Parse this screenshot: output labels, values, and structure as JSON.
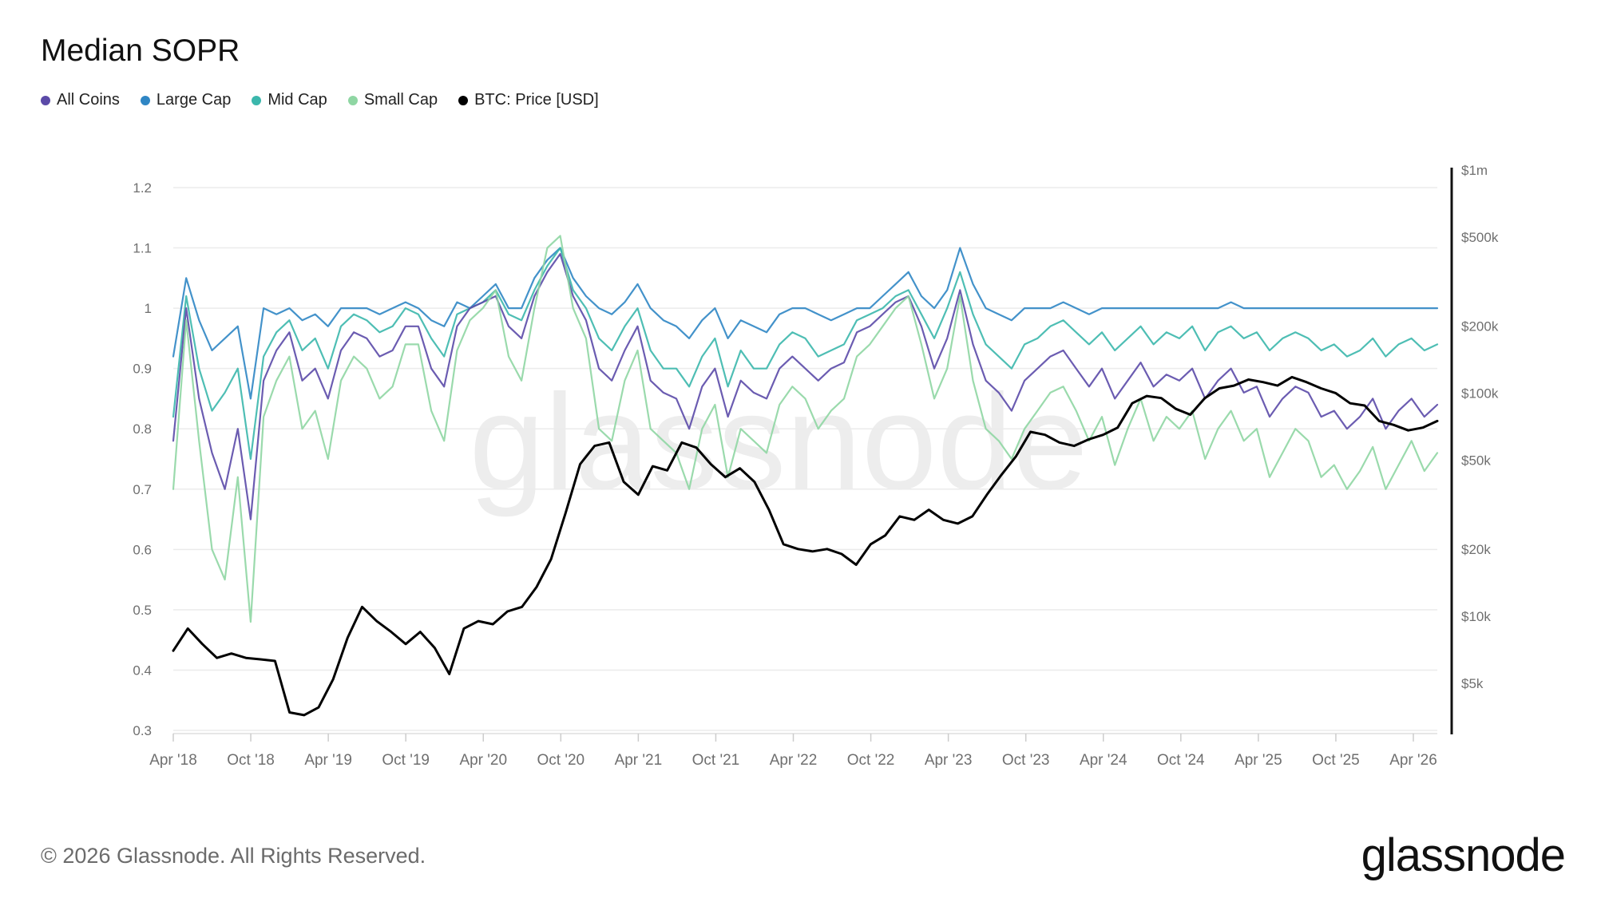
{
  "title": "Median SOPR",
  "legend": [
    {
      "label": "All Coins",
      "color": "#5b4aa8"
    },
    {
      "label": "Large Cap",
      "color": "#2f86c4"
    },
    {
      "label": "Mid Cap",
      "color": "#3bb7ac"
    },
    {
      "label": "Small Cap",
      "color": "#8fd6a3"
    },
    {
      "label": "BTC: Price [USD]",
      "color": "#000000"
    }
  ],
  "watermark": "glassnode",
  "footer": "© 2026 Glassnode. All Rights Reserved.",
  "brand": "glassnode",
  "chart_data": {
    "type": "line",
    "x_ticks": [
      "Apr '18",
      "Oct '18",
      "Apr '19",
      "Oct '19",
      "Apr '20",
      "Oct '20",
      "Apr '21",
      "Oct '21",
      "Apr '22",
      "Oct '22",
      "Apr '23",
      "Oct '23",
      "Apr '24",
      "Oct '24",
      "Apr '25",
      "Oct '25",
      "Apr '26"
    ],
    "xlim": [
      "Mar '18",
      "May '26"
    ],
    "y_left": {
      "ticks": [
        "0.3",
        "0.4",
        "0.5",
        "0.6",
        "0.7",
        "0.8",
        "0.9",
        "1",
        "1.1",
        "1.2"
      ],
      "lim": [
        0.3,
        1.2
      ]
    },
    "y_right": {
      "scale": "log",
      "ticks": [
        "$5k",
        "$10k",
        "$20k",
        "$50k",
        "$100k",
        "$200k",
        "$500k",
        "$1m"
      ],
      "values": [
        5000,
        10000,
        20000,
        50000,
        100000,
        200000,
        500000,
        1000000
      ]
    },
    "grid": true,
    "legend_position": "top-left",
    "series": [
      {
        "name": "Large Cap",
        "axis": "left",
        "color": "#2f86c4",
        "values": [
          0.92,
          1.05,
          0.98,
          0.93,
          0.95,
          0.97,
          0.85,
          1.0,
          0.99,
          1.0,
          0.98,
          0.99,
          0.97,
          1.0,
          1.0,
          1.0,
          0.99,
          1.0,
          1.01,
          1.0,
          0.98,
          0.97,
          1.01,
          1.0,
          1.02,
          1.04,
          1.0,
          1.0,
          1.05,
          1.08,
          1.1,
          1.05,
          1.02,
          1.0,
          0.99,
          1.01,
          1.04,
          1.0,
          0.98,
          0.97,
          0.95,
          0.98,
          1.0,
          0.95,
          0.98,
          0.97,
          0.96,
          0.99,
          1.0,
          1.0,
          0.99,
          0.98,
          0.99,
          1.0,
          1.0,
          1.02,
          1.04,
          1.06,
          1.02,
          1.0,
          1.03,
          1.1,
          1.04,
          1.0,
          0.99,
          0.98,
          1.0,
          1.0,
          1.0,
          1.01,
          1.0,
          0.99,
          1.0,
          1.0,
          1.0,
          1.0,
          1.0,
          1.0,
          1.0,
          1.0,
          1.0,
          1.0,
          1.01,
          1.0,
          1.0,
          1.0,
          1.0,
          1.0,
          1.0,
          1.0,
          1.0,
          1.0,
          1.0,
          1.0,
          1.0,
          1.0,
          1.0,
          1.0,
          1.0
        ]
      },
      {
        "name": "Mid Cap",
        "axis": "left",
        "color": "#3bb7ac",
        "values": [
          0.82,
          1.02,
          0.9,
          0.83,
          0.86,
          0.9,
          0.75,
          0.92,
          0.96,
          0.98,
          0.93,
          0.95,
          0.9,
          0.97,
          0.99,
          0.98,
          0.96,
          0.97,
          1.0,
          0.99,
          0.95,
          0.92,
          0.99,
          1.0,
          1.01,
          1.03,
          0.99,
          0.98,
          1.03,
          1.07,
          1.1,
          1.03,
          1.0,
          0.95,
          0.93,
          0.97,
          1.0,
          0.93,
          0.9,
          0.9,
          0.87,
          0.92,
          0.95,
          0.87,
          0.93,
          0.9,
          0.9,
          0.94,
          0.96,
          0.95,
          0.92,
          0.93,
          0.94,
          0.98,
          0.99,
          1.0,
          1.02,
          1.03,
          0.99,
          0.95,
          1.0,
          1.06,
          0.99,
          0.94,
          0.92,
          0.9,
          0.94,
          0.95,
          0.97,
          0.98,
          0.96,
          0.94,
          0.96,
          0.93,
          0.95,
          0.97,
          0.94,
          0.96,
          0.95,
          0.97,
          0.93,
          0.96,
          0.97,
          0.95,
          0.96,
          0.93,
          0.95,
          0.96,
          0.95,
          0.93,
          0.94,
          0.92,
          0.93,
          0.95,
          0.92,
          0.94,
          0.95,
          0.93,
          0.94
        ]
      },
      {
        "name": "All Coins",
        "axis": "left",
        "color": "#5b4aa8",
        "values": [
          0.78,
          1.0,
          0.85,
          0.76,
          0.7,
          0.8,
          0.65,
          0.88,
          0.93,
          0.96,
          0.88,
          0.9,
          0.85,
          0.93,
          0.96,
          0.95,
          0.92,
          0.93,
          0.97,
          0.97,
          0.9,
          0.87,
          0.97,
          1.0,
          1.01,
          1.02,
          0.97,
          0.95,
          1.02,
          1.06,
          1.09,
          1.02,
          0.98,
          0.9,
          0.88,
          0.93,
          0.97,
          0.88,
          0.86,
          0.85,
          0.8,
          0.87,
          0.9,
          0.82,
          0.88,
          0.86,
          0.85,
          0.9,
          0.92,
          0.9,
          0.88,
          0.9,
          0.91,
          0.96,
          0.97,
          0.99,
          1.01,
          1.02,
          0.97,
          0.9,
          0.95,
          1.03,
          0.94,
          0.88,
          0.86,
          0.83,
          0.88,
          0.9,
          0.92,
          0.93,
          0.9,
          0.87,
          0.9,
          0.85,
          0.88,
          0.91,
          0.87,
          0.89,
          0.88,
          0.9,
          0.85,
          0.88,
          0.9,
          0.86,
          0.87,
          0.82,
          0.85,
          0.87,
          0.86,
          0.82,
          0.83,
          0.8,
          0.82,
          0.85,
          0.8,
          0.83,
          0.85,
          0.82,
          0.84
        ]
      },
      {
        "name": "Small Cap",
        "axis": "left",
        "color": "#8fd6a3",
        "values": [
          0.7,
          0.98,
          0.78,
          0.6,
          0.55,
          0.72,
          0.48,
          0.82,
          0.88,
          0.92,
          0.8,
          0.83,
          0.75,
          0.88,
          0.92,
          0.9,
          0.85,
          0.87,
          0.94,
          0.94,
          0.83,
          0.78,
          0.93,
          0.98,
          1.0,
          1.03,
          0.92,
          0.88,
          1.0,
          1.1,
          1.12,
          1.0,
          0.95,
          0.8,
          0.78,
          0.88,
          0.93,
          0.8,
          0.78,
          0.76,
          0.7,
          0.8,
          0.84,
          0.72,
          0.8,
          0.78,
          0.76,
          0.84,
          0.87,
          0.85,
          0.8,
          0.83,
          0.85,
          0.92,
          0.94,
          0.97,
          1.0,
          1.02,
          0.94,
          0.85,
          0.9,
          1.02,
          0.88,
          0.8,
          0.78,
          0.75,
          0.8,
          0.83,
          0.86,
          0.87,
          0.83,
          0.78,
          0.82,
          0.74,
          0.8,
          0.85,
          0.78,
          0.82,
          0.8,
          0.83,
          0.75,
          0.8,
          0.83,
          0.78,
          0.8,
          0.72,
          0.76,
          0.8,
          0.78,
          0.72,
          0.74,
          0.7,
          0.73,
          0.77,
          0.7,
          0.74,
          0.78,
          0.73,
          0.76
        ]
      },
      {
        "name": "BTC: Price [USD]",
        "axis": "right",
        "color": "#000000",
        "values": [
          7000,
          8800,
          7500,
          6500,
          6800,
          6500,
          6400,
          6300,
          3700,
          3600,
          3900,
          5200,
          8000,
          11000,
          9500,
          8500,
          7500,
          8500,
          7200,
          5500,
          8800,
          9500,
          9200,
          10500,
          11000,
          13500,
          18000,
          29000,
          48000,
          58000,
          60000,
          40000,
          35000,
          47000,
          45000,
          60000,
          57000,
          48000,
          42000,
          46000,
          40000,
          30000,
          21000,
          20000,
          19500,
          20000,
          19000,
          17000,
          21000,
          23000,
          28000,
          27000,
          30000,
          27000,
          26000,
          28000,
          35000,
          43000,
          52000,
          67000,
          65000,
          60000,
          58000,
          62000,
          65000,
          70000,
          90000,
          97000,
          95000,
          85000,
          80000,
          95000,
          105000,
          108000,
          115000,
          112000,
          108000,
          118000,
          112000,
          105000,
          100000,
          90000,
          88000,
          75000,
          72000,
          68000,
          70000,
          75000
        ]
      }
    ]
  }
}
